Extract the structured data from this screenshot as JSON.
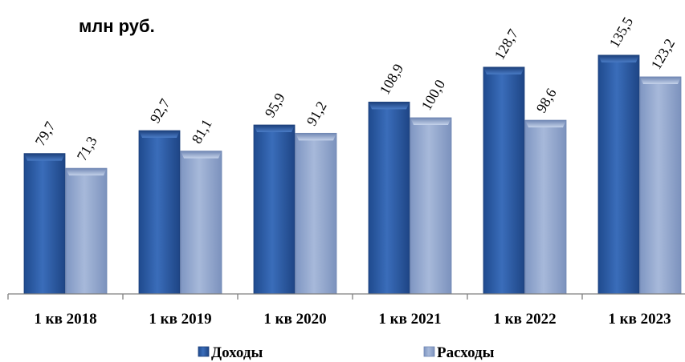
{
  "chart_data": {
    "type": "bar",
    "unit_label": "млн руб.",
    "categories": [
      "1 кв 2018",
      "1 кв 2019",
      "1 кв 2020",
      "1 кв 2021",
      "1 кв 2022",
      "1 кв 2023"
    ],
    "series": [
      {
        "name": "Доходы",
        "values": [
          79.7,
          92.7,
          95.9,
          108.9,
          128.7,
          135.5
        ],
        "labels": [
          "79,7",
          "92,7",
          "95,9",
          "108,9",
          "128,7",
          "135,5"
        ],
        "color": "#2E5FA8"
      },
      {
        "name": "Расходы",
        "values": [
          71.3,
          81.1,
          91.2,
          100.0,
          98.6,
          123.2
        ],
        "labels": [
          "71,3",
          "81,1",
          "91,2",
          "100,0",
          "98,6",
          "123,2"
        ],
        "color": "#94A9CF"
      }
    ],
    "ylim": [
      0,
      140
    ],
    "grid": false,
    "legend_position": "bottom"
  }
}
